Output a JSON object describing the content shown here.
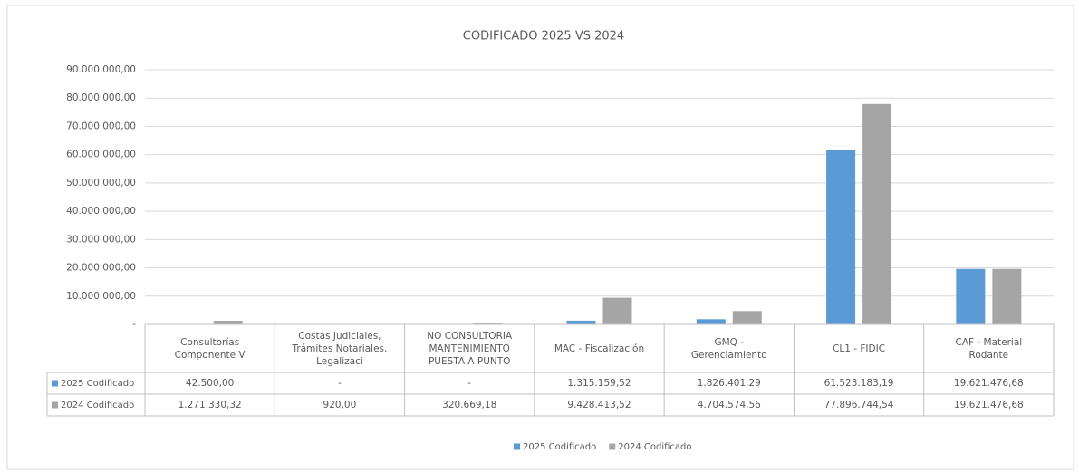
{
  "chart_data": {
    "type": "bar",
    "title": "CODIFICADO 2025 VS 2024",
    "categories": [
      "Consultorías Componente V",
      "Costas Judiciales, Trámites Notariales, Legalizaci",
      "NO CONSULTORIA MANTENIMIENTO PUESTA A PUNTO",
      "MAC - Fiscalización",
      "GMQ - Gerenciamiento",
      "CL1 - FIDIC",
      "CAF - Material Rodante"
    ],
    "series": [
      {
        "name": "2025 Codificado",
        "color": "#5b9bd5",
        "values": [
          42500,
          0,
          0,
          1315159.52,
          1826401.29,
          61523183.19,
          19621476.68
        ],
        "value_labels": [
          "42.500,00",
          "-",
          "-",
          "1.315.159,52",
          "1.826.401,29",
          "61.523.183,19",
          "19.621.476,68"
        ]
      },
      {
        "name": "2024 Codificado",
        "color": "#a5a5a5",
        "values": [
          1271330.32,
          920,
          320669.18,
          9428413.52,
          4704574.56,
          77896744.54,
          19621476.68
        ],
        "value_labels": [
          "1.271.330,32",
          "920,00",
          "320.669,18",
          "9.428.413,52",
          "4.704.574,56",
          "77.896.744,54",
          "19.621.476,68"
        ]
      }
    ],
    "ylim": [
      0,
      90000000
    ],
    "yticks": [
      {
        "value": 0,
        "label": "-"
      },
      {
        "value": 10000000,
        "label": "10.000.000,00"
      },
      {
        "value": 20000000,
        "label": "20.000.000,00"
      },
      {
        "value": 30000000,
        "label": "30.000.000,00"
      },
      {
        "value": 40000000,
        "label": "40.000.000,00"
      },
      {
        "value": 50000000,
        "label": "50.000.000,00"
      },
      {
        "value": 60000000,
        "label": "60.000.000,00"
      },
      {
        "value": 70000000,
        "label": "70.000.000,00"
      },
      {
        "value": 80000000,
        "label": "80.000.000,00"
      },
      {
        "value": 90000000,
        "label": "90.000.000,00"
      }
    ],
    "grid": true,
    "legend": "bottom"
  }
}
